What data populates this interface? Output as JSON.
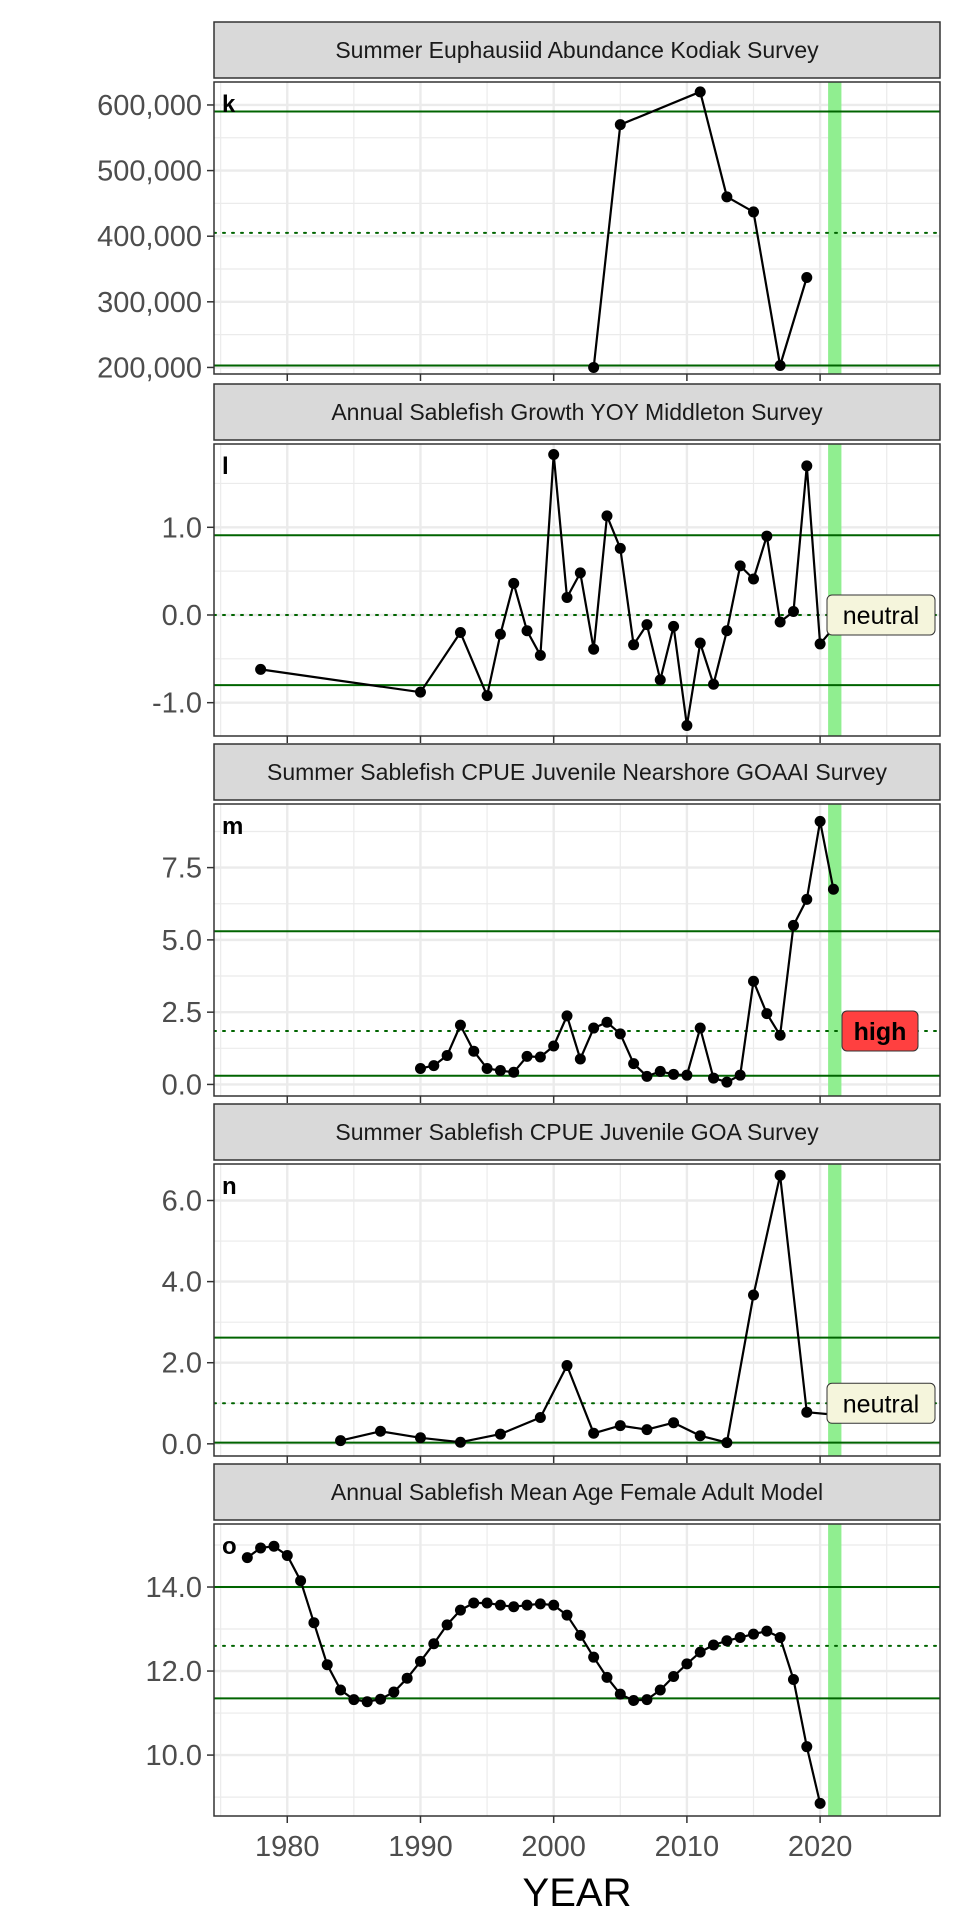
{
  "figure": {
    "x_axis_title": "YEAR",
    "x_ticks": [
      1980,
      1990,
      2000,
      2010,
      2020
    ],
    "xlim": [
      1974.5,
      2029
    ],
    "current_year_band": [
      2020.6,
      2021.6
    ],
    "colors": {
      "strip_bg": "#d9d9d9",
      "grid": "#ebebeb",
      "threshold_line": "#006400",
      "band": "#90ee90",
      "series": "#000000",
      "neutral_badge": "#f5f5dc",
      "high_badge": "#ff4040"
    }
  },
  "chart_data": [
    {
      "type": "line",
      "panel_tag": "k",
      "title": "Summer Euphausiid Abundance Kodiak Survey",
      "ylim": [
        190000,
        635000
      ],
      "y_ticks": [
        200000,
        300000,
        400000,
        500000,
        600000
      ],
      "y_tick_labels": [
        "200,000",
        "300,000",
        "400,000",
        "500,000",
        "600,000"
      ],
      "thresholds": {
        "upper": 590000,
        "mean": 405000,
        "lower": 203000
      },
      "x": [
        2003,
        2005,
        2011,
        2013,
        2015,
        2017,
        2019
      ],
      "y": [
        200000,
        570000,
        620000,
        460000,
        437000,
        203000,
        337000
      ],
      "status": ""
    },
    {
      "type": "line",
      "panel_tag": "l",
      "title": "Annual Sablefish Growth YOY Middleton Survey",
      "ylim": [
        -1.38,
        1.95
      ],
      "y_ticks": [
        -1.0,
        0.0,
        1.0
      ],
      "y_tick_labels": [
        "-1.0",
        "0.0",
        "1.0"
      ],
      "thresholds": {
        "upper": 0.91,
        "mean": 0.0,
        "lower": -0.8
      },
      "x": [
        1978,
        1990,
        1993,
        1995,
        1996,
        1997,
        1998,
        1999,
        2000,
        2001,
        2002,
        2003,
        2004,
        2005,
        2006,
        2007,
        2008,
        2009,
        2010,
        2011,
        2012,
        2013,
        2014,
        2015,
        2016,
        2017,
        2018,
        2019,
        2020,
        2021
      ],
      "y": [
        -0.62,
        -0.88,
        -0.2,
        -0.92,
        -0.22,
        0.36,
        -0.18,
        -0.46,
        1.83,
        0.2,
        0.48,
        -0.39,
        1.13,
        0.76,
        -0.34,
        -0.11,
        -0.74,
        -0.13,
        -1.26,
        -0.32,
        -0.79,
        -0.18,
        0.56,
        0.41,
        0.9,
        -0.08,
        0.04,
        1.7,
        -0.33,
        -0.15
      ],
      "status": "neutral"
    },
    {
      "type": "line",
      "panel_tag": "m",
      "title": "Summer Sablefish CPUE Juvenile Nearshore GOAAI Survey",
      "ylim": [
        -0.4,
        9.7
      ],
      "y_ticks": [
        0.0,
        2.5,
        5.0,
        7.5
      ],
      "y_tick_labels": [
        "0.0",
        "2.5",
        "5.0",
        "7.5"
      ],
      "thresholds": {
        "upper": 5.3,
        "mean": 1.85,
        "lower": 0.3
      },
      "x": [
        1990,
        1991,
        1992,
        1993,
        1994,
        1995,
        1996,
        1997,
        1998,
        1999,
        2000,
        2001,
        2002,
        2003,
        2004,
        2005,
        2006,
        2007,
        2008,
        2009,
        2010,
        2011,
        2012,
        2013,
        2014,
        2015,
        2016,
        2017,
        2018,
        2019,
        2020,
        2021
      ],
      "y": [
        0.55,
        0.65,
        1.0,
        2.05,
        1.15,
        0.55,
        0.48,
        0.42,
        0.97,
        0.95,
        1.33,
        2.37,
        0.88,
        1.95,
        2.15,
        1.75,
        0.72,
        0.28,
        0.45,
        0.35,
        0.32,
        1.95,
        0.22,
        0.08,
        0.32,
        3.57,
        2.45,
        1.7,
        5.5,
        6.4,
        9.1,
        6.75
      ],
      "status": "high"
    },
    {
      "type": "line",
      "panel_tag": "n",
      "title": "Summer Sablefish CPUE Juvenile GOA Survey",
      "ylim": [
        -0.3,
        6.9
      ],
      "y_ticks": [
        0.0,
        2.0,
        4.0,
        6.0
      ],
      "y_tick_labels": [
        "0.0",
        "2.0",
        "4.0",
        "6.0"
      ],
      "thresholds": {
        "upper": 2.62,
        "mean": 1.0,
        "lower": 0.03
      },
      "x": [
        1984,
        1987,
        1990,
        1993,
        1996,
        1999,
        2001,
        2003,
        2005,
        2007,
        2009,
        2011,
        2013,
        2015,
        2017,
        2019,
        2021
      ],
      "y": [
        0.08,
        0.31,
        0.15,
        0.04,
        0.24,
        0.65,
        1.93,
        0.26,
        0.45,
        0.35,
        0.52,
        0.2,
        0.03,
        3.67,
        6.62,
        0.78,
        0.72
      ],
      "status": "neutral"
    },
    {
      "type": "line",
      "panel_tag": "o",
      "title": "Annual Sablefish Mean Age Female Adult Model",
      "ylim": [
        8.55,
        15.5
      ],
      "y_ticks": [
        10.0,
        12.0,
        14.0
      ],
      "y_tick_labels": [
        "10.0",
        "12.0",
        "14.0"
      ],
      "thresholds": {
        "upper": 14.0,
        "mean": 12.6,
        "lower": 11.35
      },
      "x": [
        1977,
        1978,
        1979,
        1980,
        1981,
        1982,
        1983,
        1984,
        1985,
        1986,
        1987,
        1988,
        1989,
        1990,
        1991,
        1992,
        1993,
        1994,
        1995,
        1996,
        1997,
        1998,
        1999,
        2000,
        2001,
        2002,
        2003,
        2004,
        2005,
        2006,
        2007,
        2008,
        2009,
        2010,
        2011,
        2012,
        2013,
        2014,
        2015,
        2016,
        2017,
        2018,
        2019,
        2020
      ],
      "y": [
        14.7,
        14.93,
        14.97,
        14.75,
        14.15,
        13.15,
        12.15,
        11.55,
        11.32,
        11.27,
        11.33,
        11.5,
        11.83,
        12.23,
        12.65,
        13.1,
        13.45,
        13.62,
        13.62,
        13.57,
        13.53,
        13.57,
        13.6,
        13.57,
        13.33,
        12.85,
        12.33,
        11.85,
        11.45,
        11.3,
        11.32,
        11.55,
        11.87,
        12.17,
        12.45,
        12.62,
        12.72,
        12.8,
        12.88,
        12.95,
        12.8,
        11.8,
        10.2,
        8.85
      ],
      "status": ""
    }
  ]
}
